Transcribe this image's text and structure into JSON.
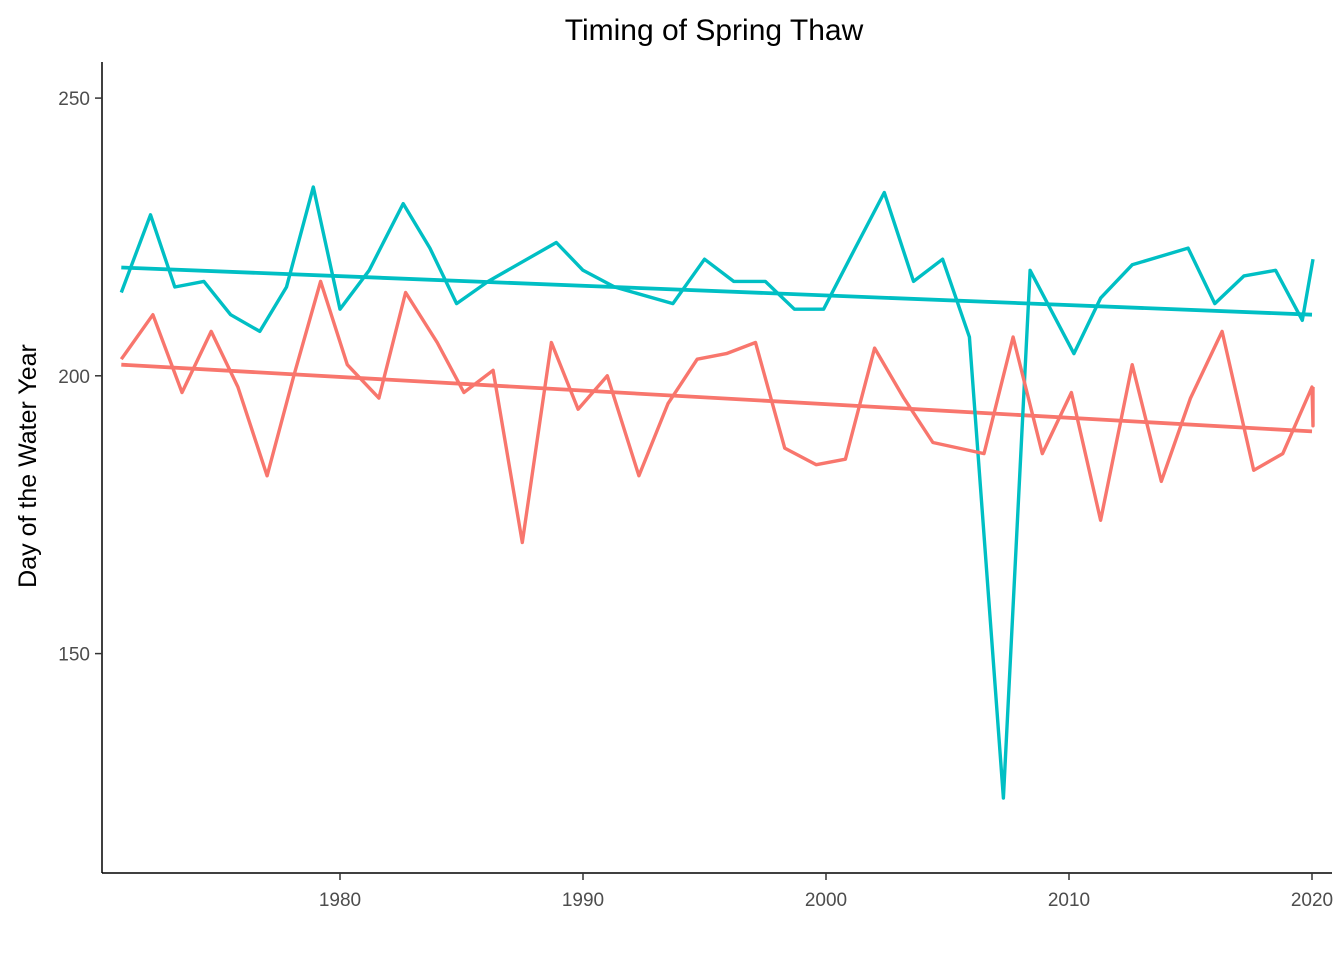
{
  "chart_data": {
    "type": "line",
    "title": "Timing of Spring Thaw",
    "xlabel": "",
    "ylabel": "Day of the Water Year",
    "xlim": [
      1970.6,
      2020.8
    ],
    "ylim": [
      110.5,
      256.5
    ],
    "x_ticks": [
      1980,
      1990,
      2000,
      2010,
      2020
    ],
    "y_ticks": [
      150,
      200,
      250
    ],
    "grid": false,
    "legend": "none",
    "x": [
      1971,
      1972,
      1973,
      1974,
      1975,
      1976,
      1977,
      1978,
      1979,
      1980,
      1981,
      1982,
      1983,
      1984,
      1985,
      1986,
      1987,
      1988,
      1989,
      1990,
      1991,
      1992,
      1993,
      1994,
      1995,
      1996,
      1997,
      1998,
      1999,
      2000,
      2001,
      2002,
      2003,
      2004,
      2005,
      2006,
      2007,
      2008,
      2009,
      2010,
      2011,
      2012,
      2013,
      2014,
      2015,
      2016,
      2017,
      2018,
      2019,
      2020
    ],
    "series": [
      {
        "color": "#00BFC4",
        "values": [
          215,
          229,
          216,
          217,
          211,
          208,
          216,
          234,
          212,
          219,
          231,
          223,
          213,
          216,
          218,
          221,
          224,
          219,
          216,
          214,
          213,
          221,
          217,
          217,
          212,
          212,
          223,
          233,
          217,
          221,
          207,
          124,
          219,
          215,
          210,
          204,
          214,
          220,
          221,
          223,
          213,
          218,
          219,
          210,
          221,
          221,
          221,
          221,
          221,
          221
        ],
        "trend": [
          219.5,
          211.0
        ]
      },
      {
        "color": "#F8766D",
        "values": [
          203,
          211,
          197,
          208,
          198,
          182,
          200,
          217,
          202,
          196,
          215,
          206,
          197,
          201,
          170,
          206,
          194,
          200,
          182,
          195,
          203,
          204,
          206,
          187,
          184,
          185,
          205,
          196,
          188,
          187,
          186,
          207,
          186,
          197,
          174,
          202,
          181,
          196,
          208,
          183,
          186,
          198,
          191,
          198,
          198,
          198,
          198,
          198,
          198,
          198
        ],
        "trend": [
          202.0,
          190.0
        ]
      }
    ],
    "line_points": [
      {
        "color": "#00BFC4",
        "points": [
          [
            1971.0,
            215
          ],
          [
            1972.2,
            229
          ],
          [
            1973.2,
            216
          ],
          [
            1974.4,
            217
          ],
          [
            1975.5,
            211
          ],
          [
            1976.7,
            208
          ],
          [
            1977.8,
            216
          ],
          [
            1978.9,
            234
          ],
          [
            1980.0,
            212
          ],
          [
            1981.2,
            219
          ],
          [
            1982.6,
            231
          ],
          [
            1983.7,
            223
          ],
          [
            1984.8,
            213
          ],
          [
            1986.1,
            217
          ],
          [
            1988.9,
            224
          ],
          [
            1990.0,
            219
          ],
          [
            1991.3,
            216
          ],
          [
            1993.7,
            213
          ],
          [
            1995.0,
            221
          ],
          [
            1996.2,
            217
          ],
          [
            1997.5,
            217
          ],
          [
            1998.7,
            212
          ],
          [
            1999.9,
            212
          ],
          [
            2001.2,
            223
          ],
          [
            2002.4,
            233
          ],
          [
            2003.6,
            217
          ],
          [
            2004.8,
            221
          ],
          [
            2005.9,
            207
          ],
          [
            2007.3,
            124
          ],
          [
            2008.4,
            219
          ],
          [
            2010.2,
            204
          ],
          [
            2011.3,
            214
          ],
          [
            2012.6,
            220
          ],
          [
            2014.9,
            223
          ],
          [
            2016.0,
            213
          ],
          [
            2017.2,
            218
          ],
          [
            2018.5,
            219
          ],
          [
            2019.6,
            210
          ],
          [
            2020.8,
            221
          ]
        ]
      },
      {
        "color": "#F8766D",
        "points": [
          [
            1971.0,
            203
          ],
          [
            1972.3,
            211
          ],
          [
            1973.5,
            197
          ],
          [
            1974.7,
            208
          ],
          [
            1975.8,
            198
          ],
          [
            1977.0,
            182
          ],
          [
            1978.1,
            200
          ],
          [
            1979.2,
            217
          ],
          [
            1980.3,
            202
          ],
          [
            1981.6,
            196
          ],
          [
            1982.7,
            215
          ],
          [
            1984.0,
            206
          ],
          [
            1985.1,
            197
          ],
          [
            1986.3,
            201
          ],
          [
            1987.5,
            170
          ],
          [
            1988.7,
            206
          ],
          [
            1989.8,
            194
          ],
          [
            1991.0,
            200
          ],
          [
            1992.3,
            182
          ],
          [
            1993.5,
            195
          ],
          [
            1994.7,
            203
          ],
          [
            1995.9,
            204
          ],
          [
            1997.1,
            206
          ],
          [
            1998.3,
            187
          ],
          [
            1999.6,
            184
          ],
          [
            2000.8,
            185
          ],
          [
            2002.0,
            205
          ],
          [
            2003.2,
            196
          ],
          [
            2004.4,
            188
          ],
          [
            2006.5,
            186
          ],
          [
            2007.7,
            207
          ],
          [
            2008.9,
            186
          ],
          [
            2010.1,
            197
          ],
          [
            2011.3,
            174
          ],
          [
            2012.6,
            202
          ],
          [
            2013.8,
            181
          ],
          [
            2015.0,
            196
          ],
          [
            2016.3,
            208
          ],
          [
            2017.6,
            183
          ],
          [
            2018.8,
            186
          ],
          [
            2020.0,
            198
          ],
          [
            2021.1,
            191
          ],
          [
            2022.2,
            198
          ]
        ]
      }
    ]
  }
}
